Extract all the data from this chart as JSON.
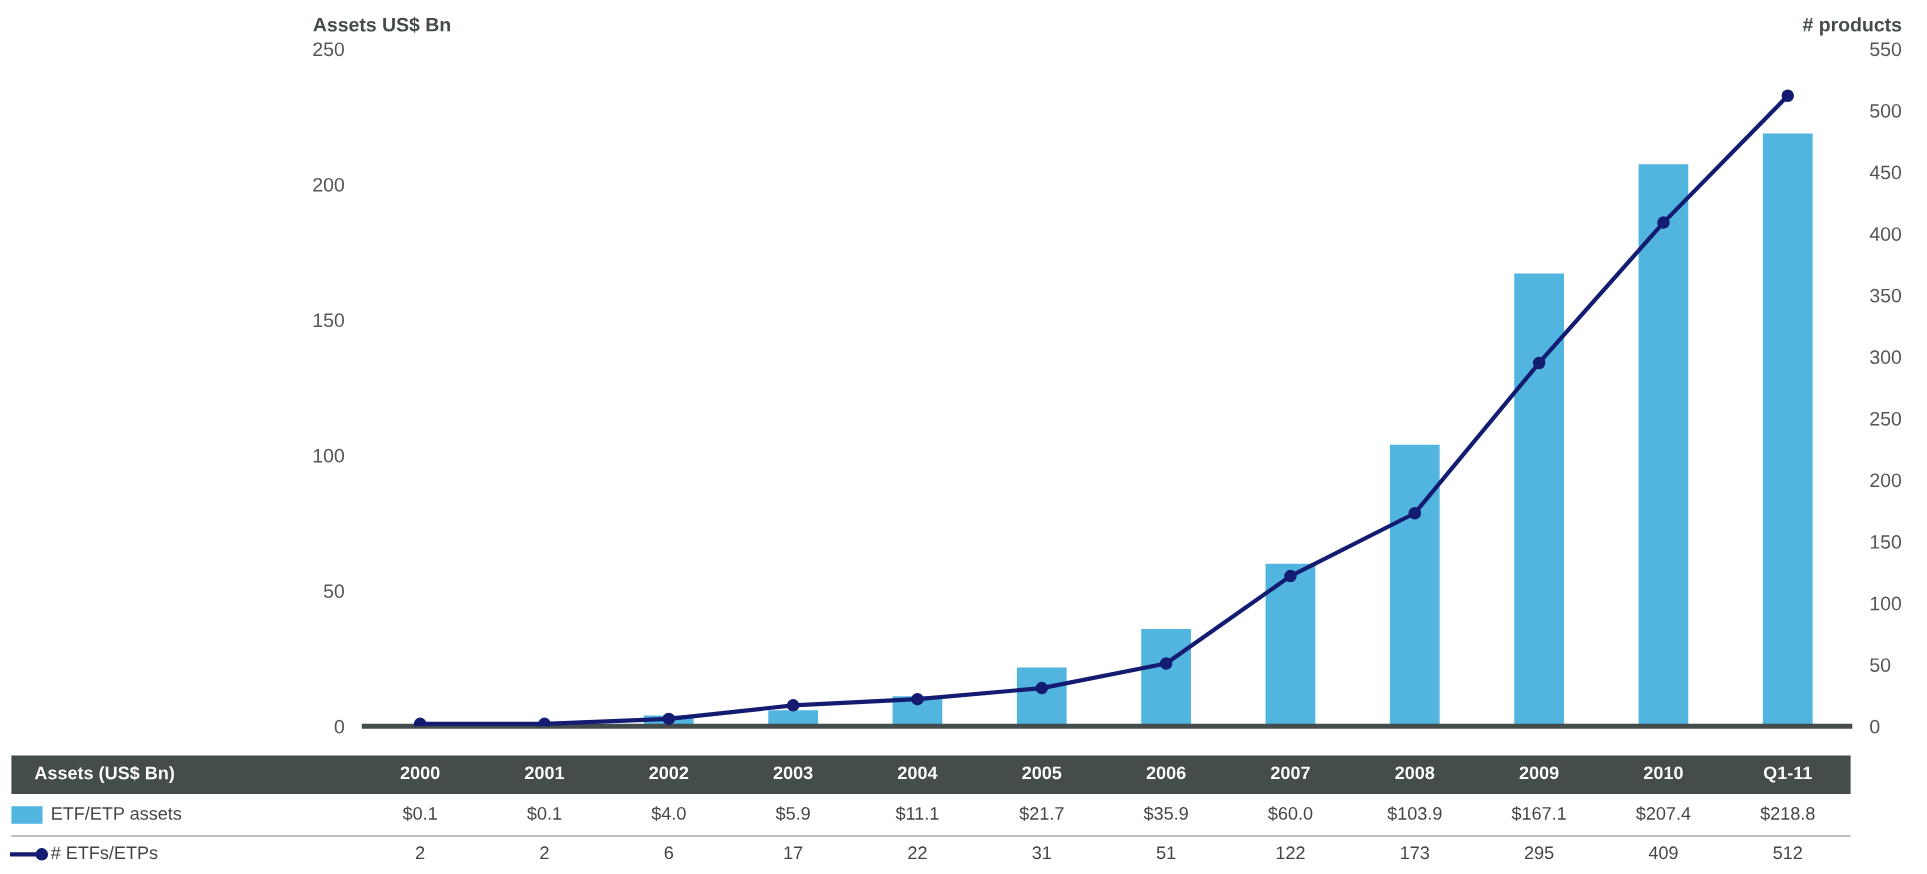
{
  "chart_data": {
    "type": "bar",
    "ylabel": "Assets US$ Bn",
    "y2label": "# products",
    "categories": [
      "2000",
      "2001",
      "2002",
      "2003",
      "2004",
      "2005",
      "2006",
      "2007",
      "2008",
      "2009",
      "2010",
      "Q1-11"
    ],
    "series": [
      {
        "name": "ETF/ETP assets",
        "color": "#52b5e0",
        "values": [
          0.1,
          0.1,
          4.0,
          5.9,
          11.1,
          21.7,
          35.9,
          60.0,
          103.9,
          167.1,
          207.4,
          218.8
        ],
        "value_labels": [
          "$0.1",
          "$0.1",
          "$4.0",
          "$5.9",
          "$11.1",
          "$21.7",
          "$35.9",
          "$60.0",
          "$103.9",
          "$167.1",
          "$207.4",
          "$218.8"
        ]
      },
      {
        "name": "# ETFs/ETPs",
        "type": "line",
        "axis": "y2",
        "color": "#131c70",
        "values": [
          2,
          2,
          6,
          17,
          22,
          31,
          51,
          122,
          173,
          295,
          409,
          512
        ],
        "value_labels": [
          "2",
          "2",
          "6",
          "17",
          "22",
          "31",
          "51",
          "122",
          "173",
          "295",
          "409",
          "512"
        ]
      }
    ],
    "ylim": [
      0,
      250
    ],
    "yticks": [
      0,
      50,
      100,
      150,
      200,
      250
    ],
    "y2lim": [
      0,
      550
    ],
    "y2ticks": [
      0,
      50,
      100,
      150,
      200,
      250,
      300,
      350,
      400,
      450,
      500,
      550
    ],
    "marker": "circle",
    "line_style": "solid",
    "grid": false,
    "legend": "bottom",
    "annotations": [
      "Assets (US$ Bn)"
    ]
  }
}
